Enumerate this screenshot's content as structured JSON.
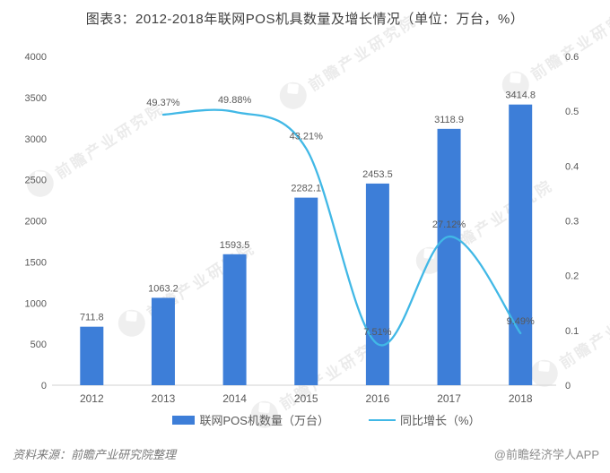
{
  "title": "图表3：2012-2018年联网POS机具数量及增长情况（单位：万台，%）",
  "watermark": {
    "brand": "前瞻产业研究院"
  },
  "footer": {
    "source": "资料来源：前瞻产业研究院整理",
    "credit": "@前瞻经济学人APP"
  },
  "legend": [
    {
      "label": "联网POS机数量（万台）",
      "type": "bar"
    },
    {
      "label": "同比增长（%）",
      "type": "line"
    }
  ],
  "colors": {
    "bar": "#3d7ed8",
    "line": "#41b8e6",
    "axis_text": "#595959",
    "label_text": "#595959",
    "baseline": "#d9d9d9",
    "title_text": "#3f3f3f",
    "watermark": "#dcdcdc"
  },
  "chart_data": {
    "type": "bar",
    "categories": [
      "2012",
      "2013",
      "2014",
      "2015",
      "2016",
      "2017",
      "2018"
    ],
    "series": [
      {
        "name": "联网POS机数量（万台）",
        "type": "bar",
        "axis": "left",
        "values": [
          711.8,
          1063.2,
          1593.5,
          2282.1,
          2453.5,
          3118.9,
          3414.8
        ],
        "labels": [
          "711.8",
          "1063.2",
          "1593.5",
          "2282.1",
          "2453.5",
          "3118.9",
          "3414.8"
        ]
      },
      {
        "name": "同比增长（%）",
        "type": "line",
        "axis": "right",
        "values": [
          null,
          0.4937,
          0.4988,
          0.4321,
          0.0751,
          0.2712,
          0.0949
        ],
        "labels": [
          null,
          "49.37%",
          "49.88%",
          "43.21%",
          "7.51%",
          "27.12%",
          "9.49%"
        ]
      }
    ],
    "left_axis": {
      "min": 0,
      "max": 4000,
      "ticks": [
        "0",
        "500",
        "1000",
        "1500",
        "2000",
        "2500",
        "3000",
        "3500",
        "4000"
      ]
    },
    "right_axis": {
      "min": 0,
      "max": 0.6,
      "ticks": [
        "0",
        "0.1",
        "0.2",
        "0.3",
        "0.4",
        "0.5",
        "0.6"
      ]
    },
    "grid": false,
    "legend_position": "bottom"
  }
}
